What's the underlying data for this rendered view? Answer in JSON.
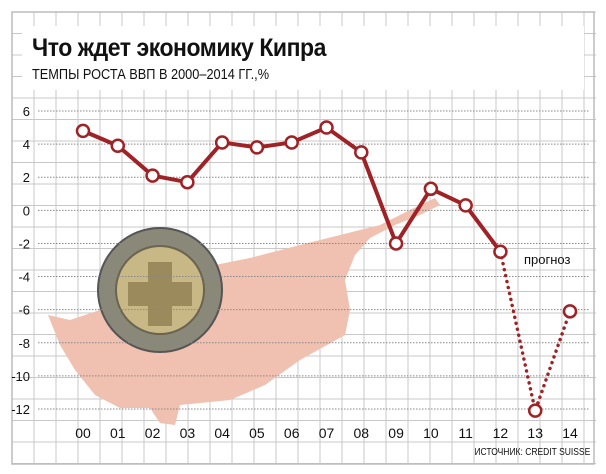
{
  "chart_data": {
    "type": "line",
    "title": "Что ждет экономику Кипра",
    "subtitle": "ТЕМПЫ РОСТА ВВП В 2000–2014 ГГ.,%",
    "categories": [
      "00",
      "01",
      "02",
      "03",
      "04",
      "05",
      "06",
      "07",
      "08",
      "09",
      "10",
      "11",
      "12",
      "13",
      "14"
    ],
    "series": [
      {
        "name": "ВВП",
        "values": [
          4.8,
          3.9,
          2.1,
          1.7,
          4.1,
          3.8,
          4.1,
          5.0,
          3.5,
          -2.0,
          1.3,
          0.3,
          -2.5,
          -12.1,
          -6.1
        ]
      }
    ],
    "forecast_from_index": 12,
    "forecast_label": "прогноз",
    "yticks": [
      "6",
      "4",
      "2",
      "0",
      "-2",
      "-4",
      "-6",
      "-8",
      "-10",
      "-12"
    ],
    "ylim": [
      -12,
      6
    ],
    "source": "ИСТОЧНИК: CREDIT SUISSE",
    "line_color": "#9e2226",
    "map_color": "#f0c0b0"
  }
}
